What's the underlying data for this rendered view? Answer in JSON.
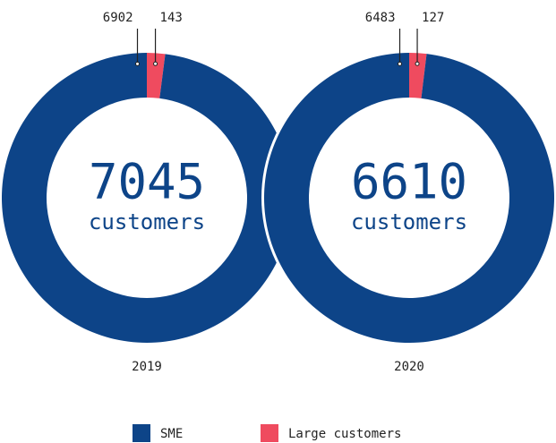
{
  "chart_data": [
    {
      "type": "donut",
      "title": "2019",
      "categories": [
        "SME",
        "Large customers"
      ],
      "values": [
        6902,
        143
      ],
      "colors": [
        "#0d4488",
        "#ef4b5f"
      ],
      "total": 7045,
      "center_label": "customers"
    },
    {
      "type": "donut",
      "title": "2020",
      "categories": [
        "SME",
        "Large customers"
      ],
      "values": [
        6483,
        127
      ],
      "colors": [
        "#0d4488",
        "#ef4b5f"
      ],
      "total": 6610,
      "center_label": "customers"
    }
  ]
}
